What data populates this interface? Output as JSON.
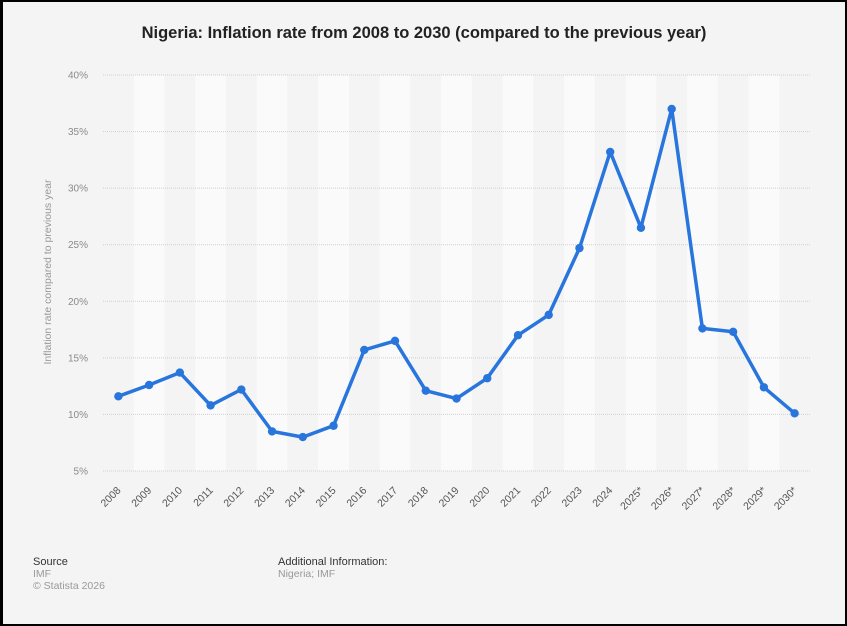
{
  "chart_data": {
    "type": "line",
    "title": "Nigeria: Inflation rate from 2008 to 2030 (compared to the previous year)",
    "xlabel": "",
    "ylabel": "Inflation rate compared to previous year",
    "ylim": [
      5,
      40
    ],
    "yticks": [
      5,
      10,
      15,
      20,
      25,
      30,
      35,
      40
    ],
    "ytick_labels": [
      "5%",
      "10%",
      "15%",
      "20%",
      "25%",
      "30%",
      "35%",
      "40%"
    ],
    "grid": true,
    "legend": "none",
    "categories": [
      "2008",
      "2009",
      "2010",
      "2011",
      "2012",
      "2013",
      "2014",
      "2015",
      "2016",
      "2017",
      "2018",
      "2019",
      "2020",
      "2021",
      "2022",
      "2023",
      "2024",
      "2025*",
      "2026*",
      "2027*",
      "2028*",
      "2029*",
      "2030*"
    ],
    "series": [
      {
        "name": "Inflation rate",
        "color": "#2876dd",
        "values": [
          11.6,
          12.6,
          13.7,
          10.8,
          12.2,
          8.5,
          8.0,
          9.0,
          15.7,
          16.5,
          12.1,
          11.4,
          13.2,
          17.0,
          18.8,
          24.7,
          33.2,
          26.5,
          37.0,
          17.6,
          17.3,
          12.4,
          10.1
        ]
      }
    ]
  },
  "footer": {
    "source_heading": "Source",
    "source_value": "IMF",
    "copyright": "© Statista 2026",
    "additional_heading": "Additional Information:",
    "additional_value": "Nigeria; IMF"
  }
}
